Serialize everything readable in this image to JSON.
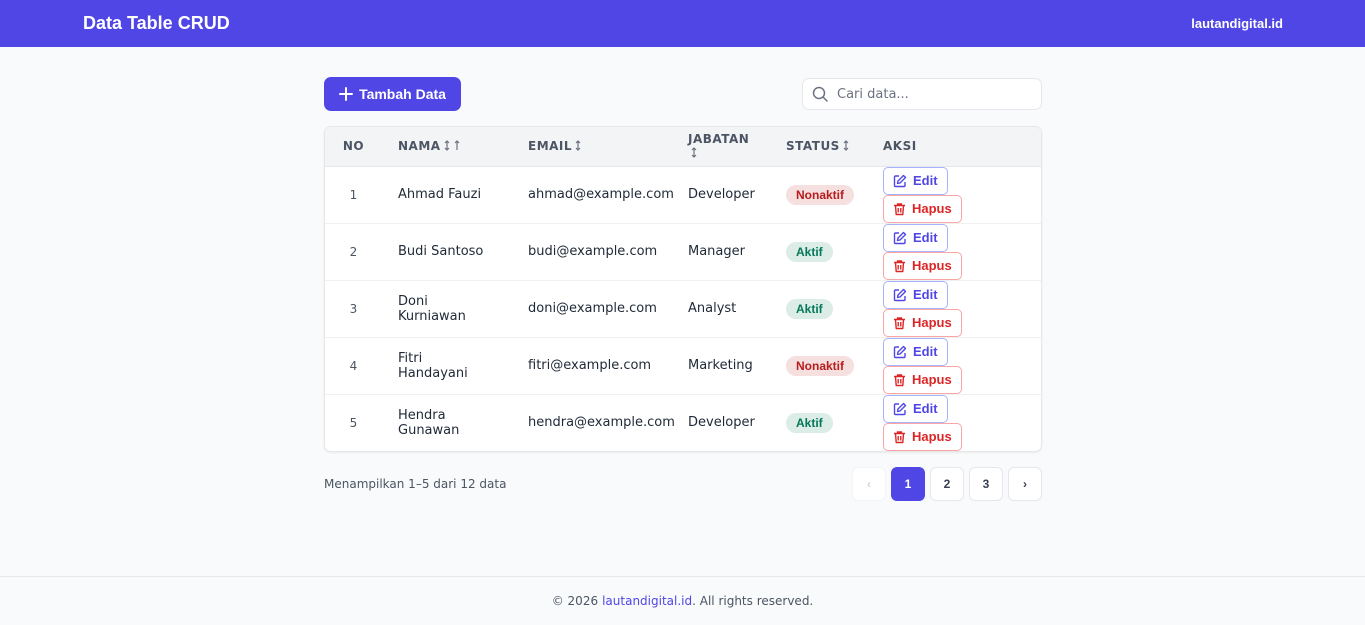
{
  "header": {
    "title": "Data Table CRUD",
    "brand": "lautandigital.id"
  },
  "toolbar": {
    "add_button": "Tambah Data",
    "search_placeholder": "Cari data..."
  },
  "table": {
    "columns": [
      "NO",
      "NAMA",
      "EMAIL",
      "JABATAN",
      "STATUS",
      "AKSI"
    ],
    "rows": [
      {
        "no": 1,
        "name": "Ahmad Fauzi",
        "email": "ahmad@example.com",
        "position": "Developer",
        "status": "Nonaktif",
        "status_color": "#b91c1c"
      },
      {
        "no": 2,
        "name": "Budi Santoso",
        "email": "budi@example.com",
        "position": "Manager",
        "status": "Aktif",
        "status_color": "#047857"
      },
      {
        "no": 3,
        "name": "Doni Kurniawan",
        "email": "doni@example.com",
        "position": "Analyst",
        "status": "Aktif",
        "status_color": "#047857"
      },
      {
        "no": 4,
        "name": "Fitri Handayani",
        "email": "fitri@example.com",
        "position": "Marketing",
        "status": "Nonaktif",
        "status_color": "#b91c1c"
      },
      {
        "no": 5,
        "name": "Hendra Gunawan",
        "email": "hendra@example.com",
        "position": "Developer",
        "status": "Aktif",
        "status_color": "#047857"
      }
    ],
    "actions": {
      "edit": "Edit",
      "delete": "Hapus"
    }
  },
  "pagination": {
    "summary": "Menampilkan 1–5 dari 12 data",
    "prev": "‹",
    "pages": [
      1,
      2,
      3
    ],
    "current": 1,
    "next": "›"
  },
  "footer": {
    "prefix": "© 2026",
    "link": "lautandigital.id",
    "suffix": ". All rights reserved."
  }
}
